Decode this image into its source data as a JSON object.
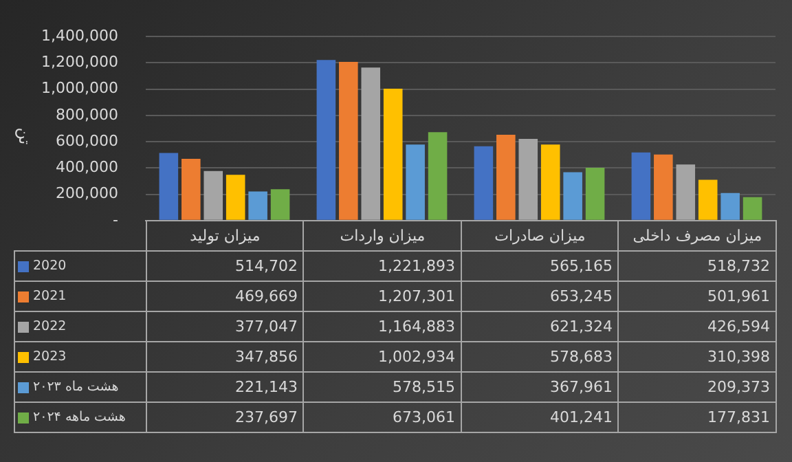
{
  "chart_data": {
    "type": "bar",
    "ylabel": "تن",
    "categories": [
      "میزان تولید",
      "میزان واردات",
      "میزان صادرات",
      "میزان مصرف داخلی"
    ],
    "series": [
      {
        "name": "2020",
        "color": "#4472c4",
        "values": [
          514702,
          1221893,
          565165,
          518732
        ],
        "value_labels": [
          "514,702",
          "1,221,893",
          "565,165",
          "518,732"
        ]
      },
      {
        "name": "2021",
        "color": "#ed7d31",
        "values": [
          469669,
          1207301,
          653245,
          501961
        ],
        "value_labels": [
          "469,669",
          "1,207,301",
          "653,245",
          "501,961"
        ]
      },
      {
        "name": "2022",
        "color": "#a5a5a5",
        "values": [
          377047,
          1164883,
          621324,
          426594
        ],
        "value_labels": [
          "377,047",
          "1,164,883",
          "621,324",
          "426,594"
        ]
      },
      {
        "name": "2023",
        "color": "#ffc000",
        "values": [
          347856,
          1002934,
          578683,
          310398
        ],
        "value_labels": [
          "347,856",
          "1,002,934",
          "578,683",
          "310,398"
        ]
      },
      {
        "name": "هشت ماه ۲۰۲۳",
        "color": "#5b9bd5",
        "values": [
          221143,
          578515,
          367961,
          209373
        ],
        "value_labels": [
          "221,143",
          "578,515",
          "367,961",
          "209,373"
        ]
      },
      {
        "name": "هشت ماهه ۲۰۲۴",
        "color": "#70ad47",
        "values": [
          237697,
          673061,
          401241,
          177831
        ],
        "value_labels": [
          "237,697",
          "673,061",
          "401,241",
          "177,831"
        ]
      }
    ],
    "ylim": [
      0,
      1400000
    ],
    "yticks": [
      {
        "value": 0,
        "label": "-"
      },
      {
        "value": 200000,
        "label": "200,000"
      },
      {
        "value": 400000,
        "label": "400,000"
      },
      {
        "value": 600000,
        "label": "600,000"
      },
      {
        "value": 800000,
        "label": "800,000"
      },
      {
        "value": 1000000,
        "label": "1,000,000"
      },
      {
        "value": 1200000,
        "label": "1,200,000"
      },
      {
        "value": 1400000,
        "label": "1,400,000"
      }
    ],
    "grid": "y",
    "legend": "bottom"
  }
}
